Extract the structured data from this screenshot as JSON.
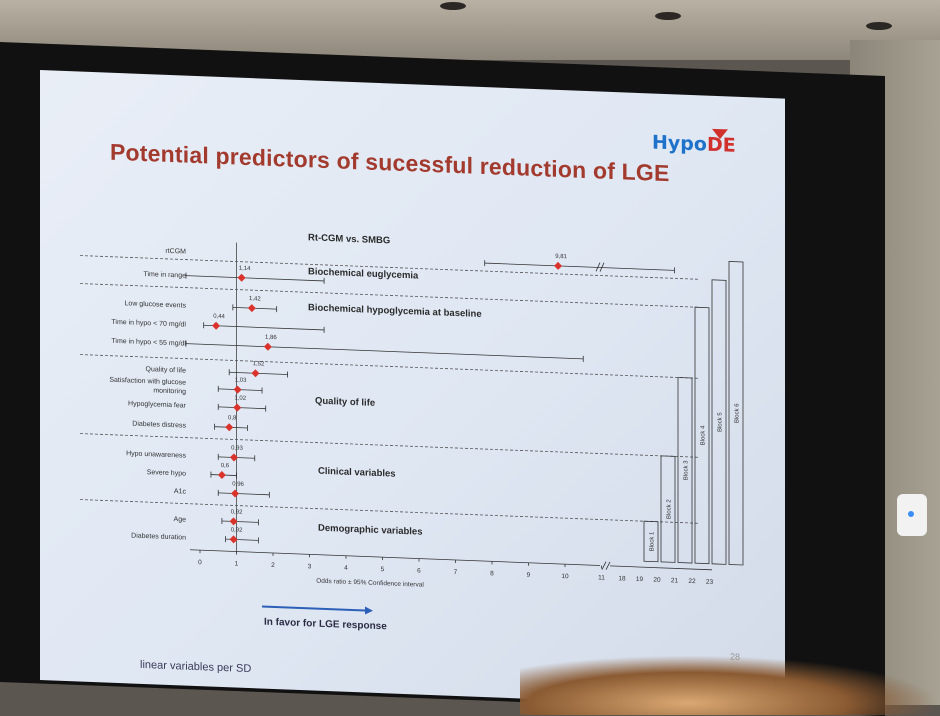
{
  "slide": {
    "title": "Potential predictors of sucessful reduction of LGE",
    "logo_main": "Hypo",
    "logo_accent": "DE",
    "footnote": "linear variables per SD",
    "favor_label": "In favor for LGE response",
    "slide_number": "28"
  },
  "axis": {
    "xlabel": "Odds ratio ± 95% Confidence interval",
    "ticks_main": [
      "0",
      "1",
      "2",
      "3",
      "4",
      "5",
      "6",
      "7",
      "8",
      "9",
      "10",
      "11"
    ],
    "ticks_break": [
      "18",
      "19",
      "20",
      "21",
      "22",
      "23"
    ]
  },
  "groups": [
    "Rt-CGM vs. SMBG",
    "Biochemical euglycemia",
    "Biochemical hypoglycemia at baseline",
    "Quality of life",
    "Clinical variables",
    "Demographic variables"
  ],
  "blocks": [
    "Block 1",
    "Block 2",
    "Block 3",
    "Block 4",
    "Block 5",
    "Block 6"
  ],
  "chart_data": {
    "type": "scatter",
    "xlabel": "Odds ratio ± 95% Confidence interval",
    "xlim": [
      0,
      11
    ],
    "rows": [
      {
        "label": "rtCGM",
        "value_label": "9,81",
        "or": 9.81
      },
      {
        "label": "Time in range",
        "value_label": "1,14",
        "or": 1.14
      },
      {
        "label": "Low glucose events",
        "value_label": "1,42",
        "or": 1.42
      },
      {
        "label": "Time in hypo < 70 mg/dl",
        "value_label": "0,44",
        "or": 0.44
      },
      {
        "label": "Time in hypo < 55 mg/dl",
        "value_label": "1,86",
        "or": 1.86
      },
      {
        "label": "Quality of life",
        "value_label": "1,52",
        "or": 1.52
      },
      {
        "label": "Satisfaction with glucose monitoring",
        "value_label": "1,03",
        "or": 1.03
      },
      {
        "label": "Hypoglycemia fear",
        "value_label": "1,02",
        "or": 1.02
      },
      {
        "label": "Diabetes distress",
        "value_label": "0,8",
        "or": 0.8
      },
      {
        "label": "Hypo unawareness",
        "value_label": "0,93",
        "or": 0.93
      },
      {
        "label": "Severe hypo",
        "value_label": "0,6",
        "or": 0.6
      },
      {
        "label": "A1c",
        "value_label": "0,96",
        "or": 0.96
      },
      {
        "label": "Age",
        "value_label": "0,92",
        "or": 0.92
      },
      {
        "label": "Diabetes duration",
        "value_label": "0,92",
        "or": 0.92
      }
    ]
  }
}
